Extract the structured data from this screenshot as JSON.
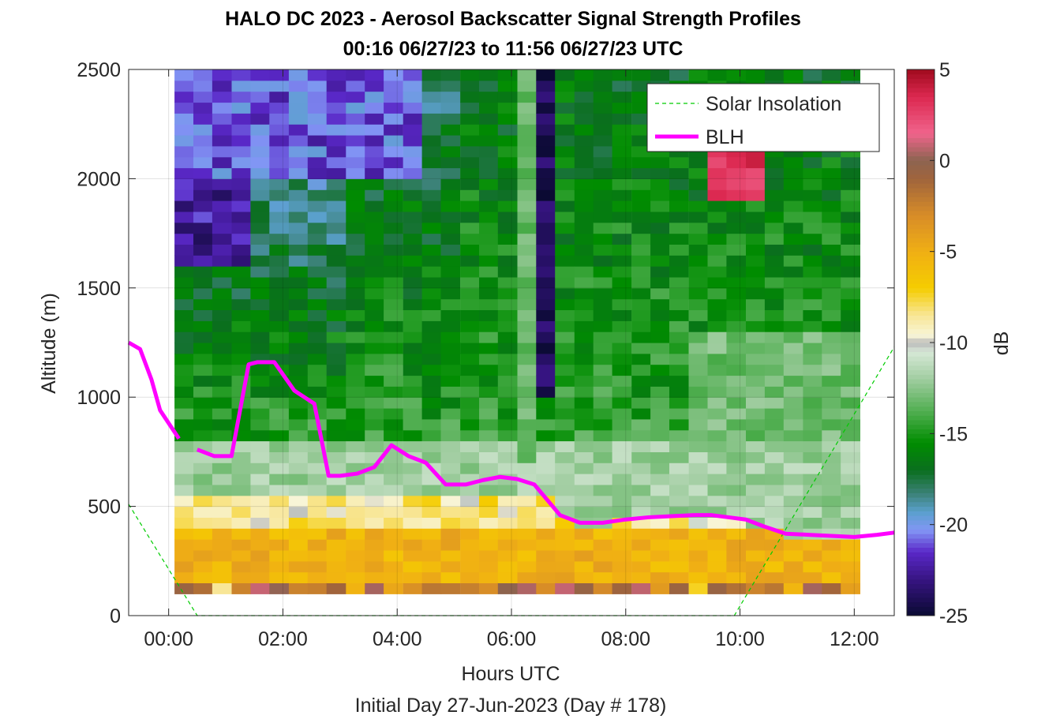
{
  "chart_data": {
    "type": "heatmap",
    "title": "HALO DC 2023 - Aerosol Backscatter Signal Strength Profiles",
    "subtitle": "00:16 06/27/23 to 11:56 06/27/23  UTC",
    "xlabel": "Hours UTC",
    "xlabel2": "Initial Day 27-Jun-2023 (Day # 178)",
    "ylabel": "Altitude (m)",
    "colorbar_label": "dB",
    "xlim": [
      -0.7,
      12.7
    ],
    "ylim": [
      0,
      2500
    ],
    "clim": [
      -25,
      5
    ],
    "xticks": [
      0,
      2,
      4,
      6,
      8,
      10,
      12
    ],
    "xtick_labels": [
      "00:00",
      "02:00",
      "04:00",
      "06:00",
      "08:00",
      "10:00",
      "12:00"
    ],
    "yticks": [
      0,
      500,
      1000,
      1500,
      2000,
      2500
    ],
    "ytick_labels": [
      "0",
      "500",
      "1000",
      "1500",
      "2000",
      "2500"
    ],
    "cticks": [
      -25,
      -20,
      -15,
      -10,
      -5,
      0,
      5
    ],
    "ctick_labels": [
      "-25",
      "-20",
      "-15",
      "-10",
      "-5",
      "0",
      "5"
    ],
    "grid": true,
    "legend_position": "top-right",
    "legend": [
      "Solar Insolation",
      "BLH"
    ],
    "profile_times_hours": [
      0.27,
      0.6,
      0.93,
      1.27,
      1.6,
      1.93,
      2.27,
      2.6,
      2.93,
      3.27,
      3.6,
      3.93,
      4.27,
      4.6,
      4.93,
      5.27,
      5.6,
      5.93,
      6.27,
      6.6,
      6.93,
      7.27,
      7.6,
      7.93,
      8.27,
      8.6,
      8.93,
      9.27,
      9.6,
      9.93,
      10.27,
      10.6,
      10.93,
      11.27,
      11.6,
      11.93
    ],
    "blh": {
      "name": "BLH",
      "color": "#ff00ff",
      "x": [
        -0.7,
        -0.5,
        -0.3,
        -0.15,
        0.18
      ],
      "y": [
        1250,
        1220,
        1080,
        940,
        810
      ],
      "x2": [
        0.5,
        0.8,
        1.1,
        1.4,
        1.55,
        1.85,
        2.2,
        2.55,
        2.8,
        3.0,
        3.3,
        3.6,
        3.9,
        4.2,
        4.5,
        4.85,
        5.2,
        5.5,
        5.8,
        6.1,
        6.4,
        6.85,
        7.2,
        7.6,
        8.0,
        8.4,
        8.8,
        9.2,
        9.5,
        9.8,
        10.1,
        10.4,
        10.8,
        11.2,
        11.6,
        12.0,
        12.4,
        12.7
      ],
      "y2": [
        760,
        730,
        730,
        1150,
        1160,
        1160,
        1030,
        970,
        640,
        640,
        650,
        680,
        780,
        730,
        700,
        600,
        600,
        620,
        635,
        625,
        600,
        460,
        425,
        425,
        440,
        450,
        455,
        460,
        460,
        450,
        440,
        410,
        375,
        370,
        365,
        360,
        370,
        380
      ]
    },
    "solar_insolation": {
      "name": "Solar Insolation",
      "color": "#00cc00",
      "x": [
        -0.7,
        0.5,
        9.9,
        12.7
      ],
      "y": [
        510,
        0,
        0,
        1230
      ]
    }
  }
}
